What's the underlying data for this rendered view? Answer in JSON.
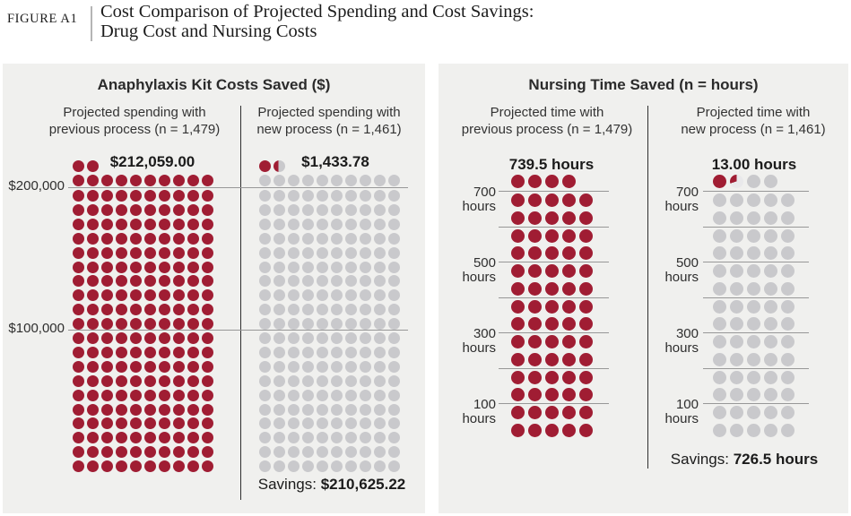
{
  "header": {
    "figure_label": "FIGURE A1",
    "title_line1": "Cost Comparison of Projected Spending and Cost Savings:",
    "title_line2": "Drug Cost and Nursing Costs"
  },
  "colors": {
    "red": "#a01d33",
    "gray": "#c9c9cc",
    "pie_base": "#e9e9eb",
    "panel_bg": "#f0f0ee",
    "gridline": "#979797",
    "divider": "#2f2f2f"
  },
  "chart_data": [
    {
      "type": "waffle",
      "title": "Anaphylaxis Kit Costs Saved ($)",
      "unit_per_dot": 1000,
      "unit": "dollars",
      "dots_per_row": 10,
      "full_rows": 21,
      "top_row_dots": 2,
      "total_dot_positions": 212,
      "gridlines": [
        {
          "label": "$200,000",
          "value": 200000,
          "labeled": true
        },
        {
          "label": "$100,000",
          "value": 100000,
          "labeled": true
        }
      ],
      "columns": [
        {
          "subtitle_line1": "Projected spending with",
          "subtitle_line2": "previous process (n = 1,479)",
          "value_label": "$212,059.00",
          "value": 212059.0,
          "dot_fill": "all_red"
        },
        {
          "subtitle_line1": "Projected spending with",
          "subtitle_line2": "new process (n = 1,461)",
          "value_label": "$1,433.78",
          "value": 1433.78,
          "dot_fill": "gray_with_highlight",
          "highlight": {
            "full_dots": 1,
            "partial_fraction": 0.43,
            "partial_style": "half-split"
          }
        }
      ],
      "savings_label": "Savings:",
      "savings_value": "$210,625.22"
    },
    {
      "type": "waffle",
      "title": "Nursing Time Saved (n = hours)",
      "unit_per_dot": 10,
      "unit": "hours",
      "dots_per_row": 5,
      "full_rows": 14,
      "top_row_dots": 4,
      "total_dot_positions": 74,
      "gridlines": [
        {
          "label_line1": "700",
          "label_line2": "hours",
          "value": 700,
          "labeled": true
        },
        {
          "value": 600,
          "labeled": false
        },
        {
          "label_line1": "500",
          "label_line2": "hours",
          "value": 500,
          "labeled": true
        },
        {
          "value": 400,
          "labeled": false
        },
        {
          "label_line1": "300",
          "label_line2": "hours",
          "value": 300,
          "labeled": true
        },
        {
          "value": 200,
          "labeled": false
        },
        {
          "label_line1": "100",
          "label_line2": "hours",
          "value": 100,
          "labeled": true
        }
      ],
      "columns": [
        {
          "subtitle_line1": "Projected time with",
          "subtitle_line2": "previous process (n = 1,479)",
          "value_label": "739.5 hours",
          "value": 739.5,
          "dot_fill": "all_red"
        },
        {
          "subtitle_line1": "Projected time with",
          "subtitle_line2": "new process (n = 1,461)",
          "value_label": "13.00 hours",
          "value": 13.0,
          "dot_fill": "gray_with_highlight",
          "highlight": {
            "full_dots": 1,
            "partial_fraction": 0.3,
            "partial_style": "pie"
          }
        }
      ],
      "savings_label": "Savings:",
      "savings_value": "726.5 hours"
    }
  ]
}
